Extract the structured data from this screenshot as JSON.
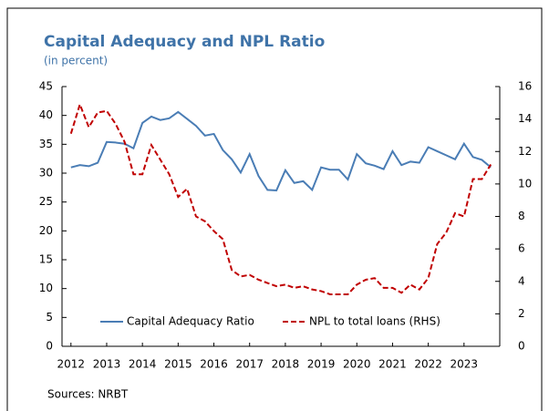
{
  "chart_data": {
    "type": "line",
    "title": "Capital Adequacy and NPL Ratio",
    "subtitle": "(in percent)",
    "source": "Sources: NRBT",
    "x": [
      2012,
      2012.25,
      2012.5,
      2012.75,
      2013,
      2013.25,
      2013.5,
      2013.75,
      2014,
      2014.25,
      2014.5,
      2014.75,
      2015,
      2015.25,
      2015.5,
      2015.75,
      2016,
      2016.25,
      2016.5,
      2016.75,
      2017,
      2017.25,
      2017.5,
      2017.75,
      2018,
      2018.25,
      2018.5,
      2018.75,
      2019,
      2019.25,
      2019.5,
      2019.75,
      2020,
      2020.25,
      2020.5,
      2020.75,
      2021,
      2021.25,
      2021.5,
      2021.75,
      2022,
      2022.25,
      2022.5,
      2022.75,
      2023,
      2023.25,
      2023.5,
      2023.75
    ],
    "series": [
      {
        "name": "Capital Adequacy Ratio",
        "color": "#4a7db5",
        "dash": false,
        "values": [
          31,
          31.4,
          31.2,
          31.8,
          35.4,
          35.3,
          35.1,
          34.3,
          38.7,
          39.8,
          39.2,
          39.5,
          40.6,
          39.4,
          38.2,
          36.5,
          36.8,
          34.0,
          32.4,
          30.1,
          33.3,
          29.5,
          27.1,
          27.0,
          30.5,
          28.3,
          28.6,
          27.1,
          31.0,
          30.6,
          30.6,
          28.9,
          33.3,
          31.7,
          31.3,
          30.7,
          33.8,
          31.4,
          32.0,
          31.8,
          34.5,
          33.8,
          33.1,
          32.4,
          35.1,
          32.8,
          32.3,
          31.0
        ]
      },
      {
        "name": "NPL to total loans (RHS)",
        "color": "#c00000",
        "dash": true,
        "axis": "y2",
        "values": [
          13.1,
          14.9,
          13.5,
          14.4,
          14.5,
          13.7,
          12.6,
          10.6,
          10.6,
          12.4,
          11.5,
          10.6,
          9.2,
          9.7,
          8.0,
          7.7,
          7.1,
          6.6,
          4.7,
          4.3,
          4.4,
          4.1,
          3.9,
          3.7,
          3.8,
          3.6,
          3.7,
          3.5,
          3.4,
          3.2,
          3.2,
          3.2,
          3.8,
          4.1,
          4.2,
          3.6,
          3.6,
          3.3,
          3.8,
          3.5,
          4.2,
          6.3,
          7.0,
          8.2,
          8.0,
          10.3,
          10.3,
          11.2
        ]
      }
    ],
    "xlim": [
      2011.75,
      2024
    ],
    "xticks": [
      2012,
      2013,
      2014,
      2015,
      2016,
      2017,
      2018,
      2019,
      2020,
      2021,
      2022,
      2023
    ],
    "ylim": [
      0,
      45
    ],
    "yticks": [
      0,
      5,
      10,
      15,
      20,
      25,
      30,
      35,
      40,
      45
    ],
    "y2lim": [
      0,
      16
    ],
    "y2ticks": [
      0,
      2,
      4,
      6,
      8,
      10,
      12,
      14,
      16
    ],
    "legend": "bottom",
    "grid": false
  }
}
